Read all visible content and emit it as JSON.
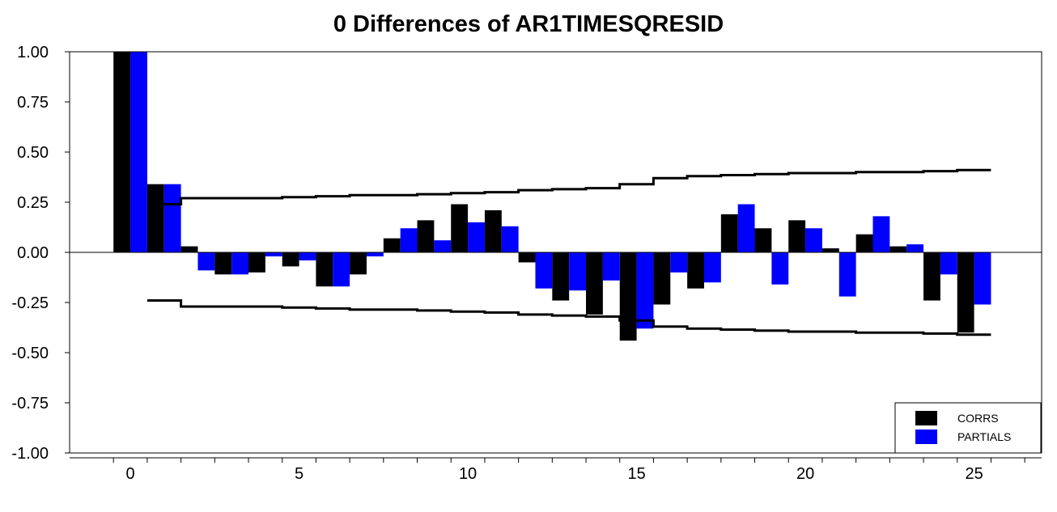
{
  "chart_data": {
    "type": "bar",
    "title": "0 Differences of AR1TIMESQRESID",
    "xlabel": "",
    "ylabel": "",
    "ylim": [
      -1.0,
      1.0
    ],
    "xlim": [
      -1.8,
      27
    ],
    "ytick_labels": [
      "1.00",
      "0.75",
      "0.50",
      "0.25",
      "0.00",
      "-0.25",
      "-0.50",
      "-0.75",
      "-1.00"
    ],
    "ytick_values": [
      1.0,
      0.75,
      0.5,
      0.25,
      0.0,
      -0.25,
      -0.5,
      -0.75,
      -1.0
    ],
    "xtick_labels": [
      "0",
      "5",
      "10",
      "15",
      "20",
      "25"
    ],
    "xtick_values": [
      0,
      5,
      10,
      15,
      20,
      25
    ],
    "grid": false,
    "legend_position": "bottom-right",
    "lags": [
      0,
      1,
      2,
      3,
      4,
      5,
      6,
      7,
      8,
      9,
      10,
      11,
      12,
      13,
      14,
      15,
      16,
      17,
      18,
      19,
      20,
      21,
      22,
      23,
      24,
      25
    ],
    "series": [
      {
        "name": "CORRS",
        "color": "#000000",
        "values": [
          1.0,
          0.34,
          0.03,
          -0.11,
          -0.1,
          -0.07,
          -0.17,
          -0.11,
          0.07,
          0.16,
          0.24,
          0.21,
          -0.05,
          -0.24,
          -0.31,
          -0.44,
          -0.26,
          -0.18,
          0.19,
          0.12,
          0.16,
          0.02,
          0.09,
          0.03,
          -0.24,
          -0.4
        ]
      },
      {
        "name": "PARTIALS",
        "color": "#0000ff",
        "values": [
          1.0,
          0.34,
          -0.09,
          -0.11,
          -0.02,
          -0.04,
          -0.17,
          -0.02,
          0.12,
          0.06,
          0.15,
          0.13,
          -0.18,
          -0.19,
          -0.14,
          -0.38,
          -0.1,
          -0.15,
          0.24,
          -0.16,
          0.12,
          -0.22,
          0.18,
          0.04,
          -0.11,
          -0.26
        ]
      }
    ],
    "confidence_band": {
      "lags": [
        1,
        2,
        3,
        4,
        5,
        6,
        7,
        8,
        9,
        10,
        11,
        12,
        13,
        14,
        15,
        16,
        17,
        18,
        19,
        20,
        21,
        22,
        23,
        24,
        25
      ],
      "upper": [
        0.24,
        0.27,
        0.27,
        0.27,
        0.275,
        0.28,
        0.285,
        0.285,
        0.29,
        0.295,
        0.3,
        0.31,
        0.315,
        0.32,
        0.34,
        0.37,
        0.38,
        0.385,
        0.39,
        0.395,
        0.395,
        0.4,
        0.4,
        0.405,
        0.41
      ],
      "lower": [
        -0.24,
        -0.27,
        -0.27,
        -0.27,
        -0.275,
        -0.28,
        -0.285,
        -0.285,
        -0.29,
        -0.295,
        -0.3,
        -0.31,
        -0.315,
        -0.32,
        -0.34,
        -0.37,
        -0.38,
        -0.385,
        -0.39,
        -0.395,
        -0.395,
        -0.4,
        -0.4,
        -0.405,
        -0.41
      ]
    }
  }
}
